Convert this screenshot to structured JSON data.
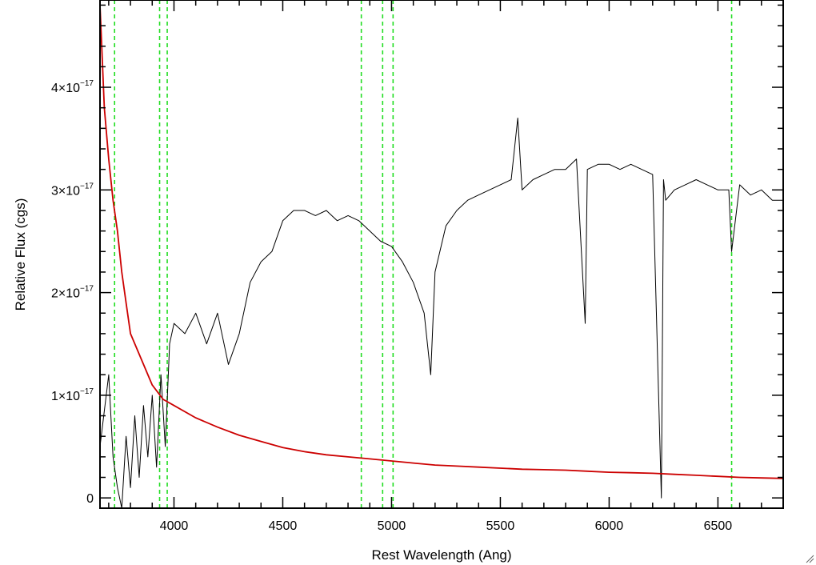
{
  "chart_data": {
    "type": "line",
    "title": "",
    "xlabel": "Rest Wavelength (Ang)",
    "ylabel": "Relative Flux (cgs)",
    "xlim": [
      3660,
      6800
    ],
    "ylim": [
      -1e-18,
      4.85e-17
    ],
    "grid": false,
    "legend": "none",
    "x_ticks": [
      {
        "value": 4000,
        "label": "4000"
      },
      {
        "value": 4500,
        "label": "4500"
      },
      {
        "value": 5000,
        "label": "5000"
      },
      {
        "value": 5500,
        "label": "5500"
      },
      {
        "value": 6000,
        "label": "6000"
      },
      {
        "value": 6500,
        "label": "6500"
      }
    ],
    "y_ticks": [
      {
        "value": 0,
        "mant": "0",
        "exp": ""
      },
      {
        "value": 1e-17,
        "mant": "1×10",
        "exp": "−17"
      },
      {
        "value": 2e-17,
        "mant": "2×10",
        "exp": "−17"
      },
      {
        "value": 3e-17,
        "mant": "3×10",
        "exp": "−17"
      },
      {
        "value": 4e-17,
        "mant": "4×10",
        "exp": "−17"
      }
    ],
    "vlines": [
      3727,
      3934,
      3969,
      4861,
      4959,
      5007,
      6563
    ],
    "series": [
      {
        "color": "#000000",
        "x": [
          3660,
          3700,
          3720,
          3740,
          3760,
          3780,
          3800,
          3820,
          3840,
          3860,
          3880,
          3900,
          3920,
          3940,
          3960,
          3980,
          4000,
          4050,
          4100,
          4150,
          4200,
          4250,
          4300,
          4350,
          4400,
          4450,
          4500,
          4550,
          4600,
          4650,
          4700,
          4750,
          4800,
          4850,
          4900,
          4950,
          5000,
          5050,
          5100,
          5150,
          5180,
          5200,
          5250,
          5300,
          5350,
          5400,
          5450,
          5500,
          5550,
          5580,
          5600,
          5650,
          5700,
          5750,
          5800,
          5850,
          5890,
          5900,
          5950,
          6000,
          6050,
          6100,
          6150,
          6200,
          6240,
          6250,
          6260,
          6300,
          6350,
          6400,
          6450,
          6500,
          6550,
          6563,
          6600,
          6650,
          6700,
          6750,
          6800
        ],
        "y": [
          5e-18,
          1.2e-17,
          4e-18,
          1e-18,
          -1e-18,
          6e-18,
          1e-18,
          8e-18,
          2e-18,
          9e-18,
          4e-18,
          1e-17,
          3e-18,
          1.2e-17,
          5e-18,
          1.5e-17,
          1.7e-17,
          1.6e-17,
          1.8e-17,
          1.5e-17,
          1.8e-17,
          1.3e-17,
          1.6e-17,
          2.1e-17,
          2.3e-17,
          2.4e-17,
          2.7e-17,
          2.8e-17,
          2.8e-17,
          2.75e-17,
          2.8e-17,
          2.7e-17,
          2.75e-17,
          2.7e-17,
          2.6e-17,
          2.5e-17,
          2.45e-17,
          2.3e-17,
          2.1e-17,
          1.8e-17,
          1.2e-17,
          2.2e-17,
          2.65e-17,
          2.8e-17,
          2.9e-17,
          2.95e-17,
          3e-17,
          3.05e-17,
          3.1e-17,
          3.7e-17,
          3e-17,
          3.1e-17,
          3.15e-17,
          3.2e-17,
          3.2e-17,
          3.3e-17,
          1.7e-17,
          3.2e-17,
          3.25e-17,
          3.25e-17,
          3.2e-17,
          3.25e-17,
          3.2e-17,
          3.15e-17,
          0,
          3.1e-17,
          2.9e-17,
          3e-17,
          3.05e-17,
          3.1e-17,
          3.05e-17,
          3e-17,
          3e-17,
          2.4e-17,
          3.05e-17,
          2.95e-17,
          3e-17,
          2.9e-17,
          2.9e-17
        ]
      },
      {
        "color": "#cc0000",
        "x": [
          3660,
          3680,
          3700,
          3720,
          3740,
          3760,
          3780,
          3800,
          3850,
          3900,
          3950,
          4000,
          4100,
          4200,
          4300,
          4400,
          4500,
          4600,
          4700,
          4800,
          4900,
          5000,
          5100,
          5200,
          5300,
          5400,
          5500,
          5600,
          5700,
          5800,
          5900,
          6000,
          6100,
          6200,
          6300,
          6400,
          6500,
          6600,
          6700,
          6800
        ],
        "y": [
          4.8e-17,
          3.8e-17,
          3.3e-17,
          2.9e-17,
          2.6e-17,
          2.2e-17,
          1.9e-17,
          1.6e-17,
          1.35e-17,
          1.1e-17,
          9.6e-18,
          9e-18,
          7.8e-18,
          6.9e-18,
          6.1e-18,
          5.5e-18,
          4.9e-18,
          4.5e-18,
          4.2e-18,
          4e-18,
          3.8e-18,
          3.6e-18,
          3.4e-18,
          3.2e-18,
          3.1e-18,
          3e-18,
          2.9e-18,
          2.8e-18,
          2.75e-18,
          2.7e-18,
          2.6e-18,
          2.5e-18,
          2.45e-18,
          2.4e-18,
          2.3e-18,
          2.2e-18,
          2.1e-18,
          2e-18,
          1.95e-18,
          1.9e-18
        ]
      }
    ]
  }
}
